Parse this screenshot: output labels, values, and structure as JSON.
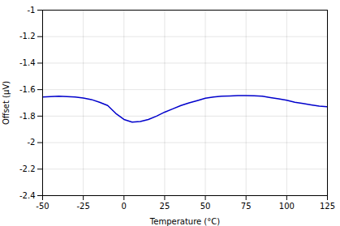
{
  "chart_data": {
    "type": "line",
    "xlabel": "Temperature (°C)",
    "ylabel": "Offset (μV)",
    "x": [
      -50,
      -40,
      -30,
      -25,
      -20,
      -15,
      -10,
      -5,
      0,
      5,
      10,
      15,
      20,
      25,
      30,
      35,
      40,
      45,
      50,
      55,
      60,
      65,
      70,
      75,
      80,
      85,
      90,
      95,
      100,
      105,
      110,
      115,
      120,
      125
    ],
    "values": [
      -1.655,
      -1.65,
      -1.655,
      -1.663,
      -1.675,
      -1.695,
      -1.72,
      -1.78,
      -1.825,
      -1.845,
      -1.84,
      -1.825,
      -1.8,
      -1.77,
      -1.745,
      -1.72,
      -1.7,
      -1.683,
      -1.665,
      -1.655,
      -1.65,
      -1.648,
      -1.645,
      -1.645,
      -1.647,
      -1.65,
      -1.66,
      -1.67,
      -1.68,
      -1.695,
      -1.705,
      -1.715,
      -1.725,
      -1.73
    ],
    "color": "#0000CC",
    "xlim": [
      -50,
      125
    ],
    "ylim": [
      -2.4,
      -1.0
    ],
    "xticks": [
      -50,
      -25,
      0,
      25,
      50,
      75,
      100,
      125
    ],
    "yticks": [
      -2.4,
      -2.2,
      -2.0,
      -1.8,
      -1.6,
      -1.4,
      -1.2,
      -1.0
    ],
    "grid": true
  }
}
